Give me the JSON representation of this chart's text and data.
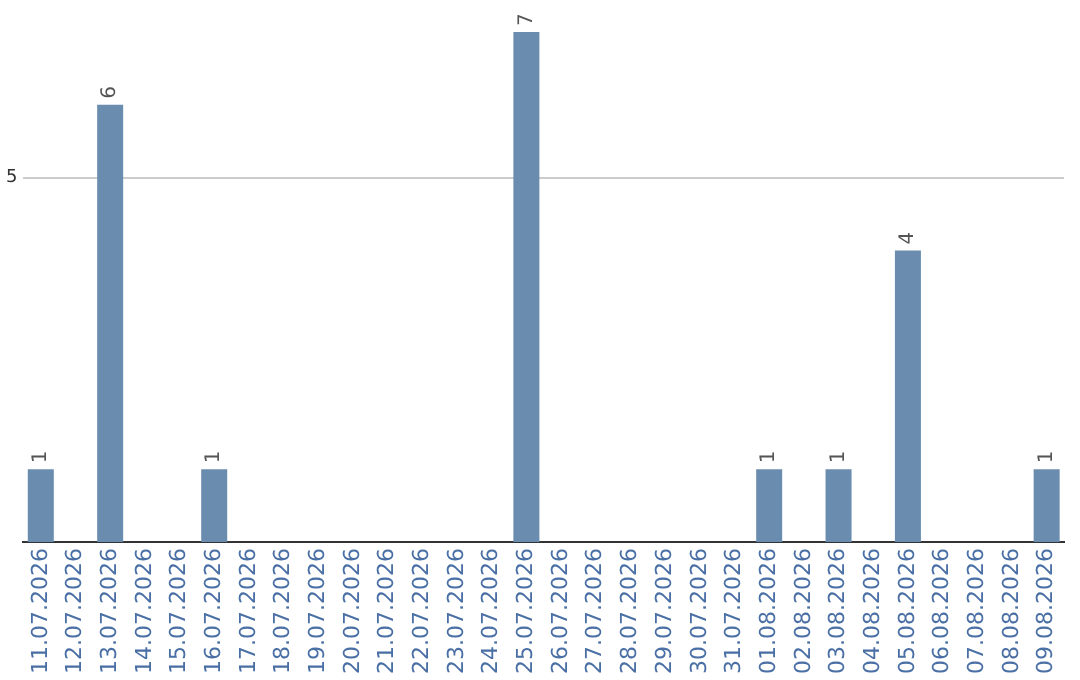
{
  "chart_data": {
    "type": "bar",
    "categories": [
      "11.07.2026",
      "12.07.2026",
      "13.07.2026",
      "14.07.2026",
      "15.07.2026",
      "16.07.2026",
      "17.07.2026",
      "18.07.2026",
      "19.07.2026",
      "20.07.2026",
      "21.07.2026",
      "22.07.2026",
      "23.07.2026",
      "24.07.2026",
      "25.07.2026",
      "26.07.2026",
      "27.07.2026",
      "28.07.2026",
      "29.07.2026",
      "30.07.2026",
      "31.07.2026",
      "01.08.2026",
      "02.08.2026",
      "03.08.2026",
      "04.08.2026",
      "05.08.2026",
      "06.08.2026",
      "07.08.2026",
      "08.08.2026",
      "09.08.2026"
    ],
    "values": [
      1,
      0,
      6,
      0,
      0,
      1,
      0,
      0,
      0,
      0,
      0,
      0,
      0,
      0,
      7,
      0,
      0,
      0,
      0,
      0,
      0,
      1,
      0,
      1,
      0,
      4,
      0,
      0,
      0,
      1
    ],
    "value_labels": [
      "1",
      null,
      "6",
      null,
      null,
      "1",
      null,
      null,
      null,
      null,
      null,
      null,
      null,
      null,
      "7",
      null,
      null,
      null,
      null,
      null,
      null,
      "1",
      null,
      "1",
      null,
      "4",
      null,
      null,
      null,
      "1"
    ],
    "color": "#6a8caf",
    "ylim": [
      0,
      7
    ],
    "yticks": [
      5
    ],
    "grid": "y",
    "legend": false
  }
}
